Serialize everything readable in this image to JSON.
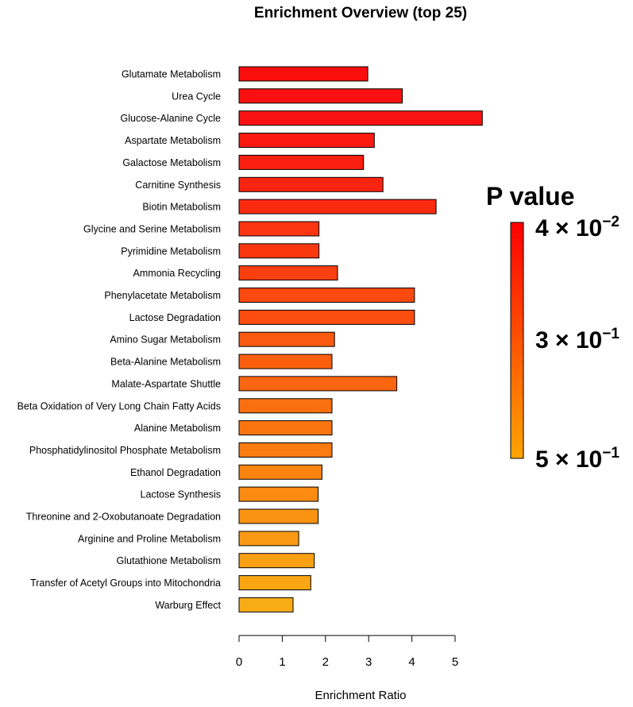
{
  "chart_data": {
    "type": "bar",
    "orientation": "horizontal",
    "title": "Enrichment Overview (top 25)",
    "xlabel": "Enrichment Ratio",
    "ylabel": "",
    "xlim": [
      0,
      5.6
    ],
    "xticks": [
      0,
      1,
      2,
      3,
      4,
      5
    ],
    "categories": [
      "Glutamate Metabolism",
      "Urea Cycle",
      "Glucose-Alanine Cycle",
      "Aspartate Metabolism",
      "Galactose Metabolism",
      "Carnitine Synthesis",
      "Biotin Metabolism",
      "Glycine and Serine Metabolism",
      "Pyrimidine Metabolism",
      "Ammonia Recycling",
      "Phenylacetate Metabolism",
      "Lactose Degradation",
      "Amino Sugar Metabolism",
      "Beta-Alanine Metabolism",
      "Malate-Aspartate Shuttle",
      "Beta Oxidation of Very Long Chain Fatty Acids",
      "Alanine Metabolism",
      "Phosphatidylinositol Phosphate Metabolism",
      "Ethanol Degradation",
      "Lactose Synthesis",
      "Threonine and 2-Oxobutanoate Degradation",
      "Arginine and Proline Metabolism",
      "Glutathione Metabolism",
      "Transfer of Acetyl Groups into Mitochondria",
      "Warburg Effect"
    ],
    "values": [
      2.98,
      3.78,
      5.63,
      3.13,
      2.88,
      3.33,
      4.56,
      1.85,
      1.85,
      2.28,
      4.06,
      4.06,
      2.21,
      2.15,
      3.65,
      2.15,
      2.15,
      2.15,
      1.92,
      1.83,
      1.83,
      1.38,
      1.74,
      1.66,
      1.25
    ],
    "bar_colors": [
      "#fa0d0d",
      "#fa1010",
      "#fa1212",
      "#fa1a10",
      "#fa1f10",
      "#fa2410",
      "#fa2a10",
      "#fa3510",
      "#fa3810",
      "#fa3f10",
      "#fa4a10",
      "#fa4e10",
      "#fa5a10",
      "#fa5f10",
      "#fa6510",
      "#fa7010",
      "#fa7510",
      "#fa7b10",
      "#fa8410",
      "#fa8a12",
      "#fa9212",
      "#fa9a14",
      "#faa014",
      "#faa614",
      "#faac16"
    ],
    "grid": false,
    "legend": {
      "title": "P value",
      "placement": "right",
      "gradient_top": "#ff0000",
      "gradient_bottom": "#ffa500",
      "ticks": [
        {
          "base": "4 × 10",
          "exp": "−2"
        },
        {
          "base": "3 × 10",
          "exp": "−1"
        },
        {
          "base": "5 × 10",
          "exp": "−1"
        }
      ]
    }
  }
}
